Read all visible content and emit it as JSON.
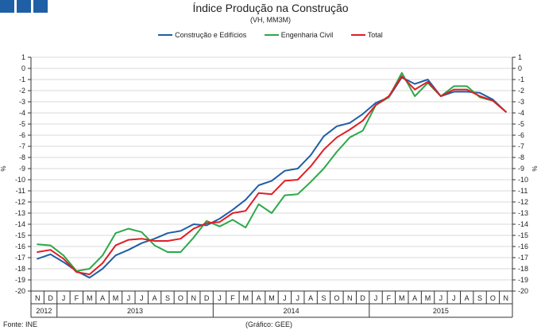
{
  "header": {
    "title": "Índice Produção na Construção",
    "subtitle": "(VH, MM3M)"
  },
  "footer": {
    "source": "Fonte: INE",
    "credit": "(Gráfico: GEE)"
  },
  "chart_data": {
    "type": "line",
    "title": "Índice Produção na Construção",
    "subtitle": "(VH, MM3M)",
    "ylabel": "%",
    "ylim": [
      -20,
      1
    ],
    "yticks": [
      1,
      0,
      -1,
      -2,
      -3,
      -4,
      -5,
      -6,
      -7,
      -8,
      -9,
      -10,
      -11,
      -12,
      -13,
      -14,
      -15,
      -16,
      -17,
      -18,
      -19,
      -20
    ],
    "categories": [
      "N",
      "D",
      "J",
      "F",
      "M",
      "A",
      "M",
      "J",
      "J",
      "A",
      "S",
      "O",
      "N",
      "D",
      "J",
      "F",
      "M",
      "A",
      "M",
      "J",
      "J",
      "A",
      "S",
      "O",
      "N",
      "D",
      "J",
      "F",
      "M",
      "A",
      "M",
      "J",
      "J",
      "A",
      "S",
      "O",
      "N"
    ],
    "years": [
      {
        "label": "2012",
        "start": 0,
        "end": 1
      },
      {
        "label": "2013",
        "start": 2,
        "end": 13
      },
      {
        "label": "2014",
        "start": 14,
        "end": 25
      },
      {
        "label": "2015",
        "start": 26,
        "end": 36
      }
    ],
    "legend_position": "top-center",
    "series": [
      {
        "name": "Construção e Edifícios",
        "color": "#1f5fa6",
        "values": [
          -17.1,
          -16.7,
          -17.4,
          -18.2,
          -18.8,
          -18.0,
          -16.8,
          -16.3,
          -15.7,
          -15.3,
          -14.8,
          -14.6,
          -14.0,
          -14.1,
          -13.5,
          -12.7,
          -11.8,
          -10.5,
          -10.1,
          -9.2,
          -9.0,
          -7.8,
          -6.1,
          -5.2,
          -4.9,
          -4.1,
          -3.1,
          -2.6,
          -0.8,
          -1.4,
          -1.0,
          -2.5,
          -2.1,
          -2.1,
          -2.2,
          -2.8,
          -3.9
        ]
      },
      {
        "name": "Engenharia Civil",
        "color": "#2da84a",
        "values": [
          -15.8,
          -15.9,
          -16.8,
          -18.2,
          -18.0,
          -16.8,
          -14.8,
          -14.4,
          -14.7,
          -15.9,
          -16.5,
          -16.5,
          -15.2,
          -13.7,
          -14.2,
          -13.6,
          -14.3,
          -12.2,
          -13.0,
          -11.4,
          -11.3,
          -10.2,
          -9.0,
          -7.5,
          -6.2,
          -5.6,
          -3.3,
          -2.6,
          -0.4,
          -2.5,
          -1.3,
          -2.5,
          -1.6,
          -1.6,
          -2.6,
          -2.9,
          -3.9
        ]
      },
      {
        "name": "Total",
        "color": "#e01e24",
        "values": [
          -16.5,
          -16.3,
          -17.1,
          -18.3,
          -18.5,
          -17.5,
          -15.9,
          -15.4,
          -15.3,
          -15.5,
          -15.5,
          -15.3,
          -14.4,
          -13.9,
          -13.8,
          -13.0,
          -12.8,
          -11.2,
          -11.3,
          -10.1,
          -10.0,
          -8.8,
          -7.3,
          -6.2,
          -5.5,
          -4.7,
          -3.3,
          -2.5,
          -0.7,
          -1.9,
          -1.2,
          -2.5,
          -1.9,
          -1.9,
          -2.5,
          -2.9,
          -3.9
        ]
      }
    ]
  }
}
